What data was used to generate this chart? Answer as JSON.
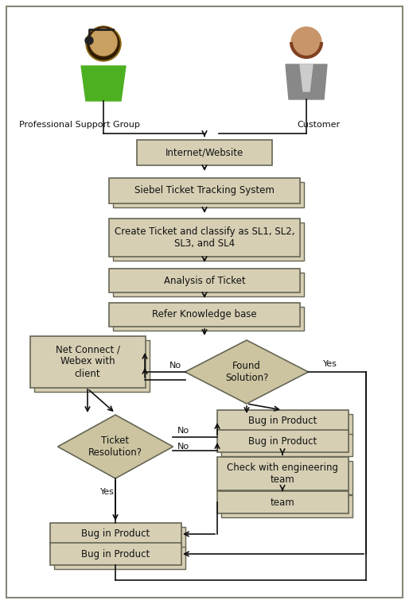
{
  "bg_color": "#ffffff",
  "box_fill": "#d6cfb4",
  "box_edge": "#666655",
  "diamond_fill": "#ccc4a0",
  "diamond_edge": "#666655",
  "arrow_color": "#111111",
  "text_color": "#111111",
  "border_color": "#888877",
  "support_label": "Professional Support Group",
  "customer_label": "Customer",
  "box1_text": "Internet/Website",
  "box2_text": "Siebel Ticket Tracking System",
  "box3_text": "Create Ticket and classify as SL1, SL2,\nSL3, and SL4",
  "box4_text": "Analysis of Ticket",
  "box5_text": "Refer Knowledge base",
  "diamond1_text": "Found\nSolution?",
  "netconn_text": "Net Connect /\nWebex with\nclient",
  "diamond2_text": "Ticket\nResolution?",
  "bugr1_text": "Bug in Product",
  "bugr2_text": "Bug in Product",
  "checkeng_text": "Check with engineering\nteam",
  "engteam_text": "team",
  "bugl1_text": "Bug in Product",
  "bugl2_text": "Bug in Product",
  "no1": "No",
  "yes1": "Yes",
  "no2": "No",
  "no3": "No",
  "yes2": "Yes"
}
